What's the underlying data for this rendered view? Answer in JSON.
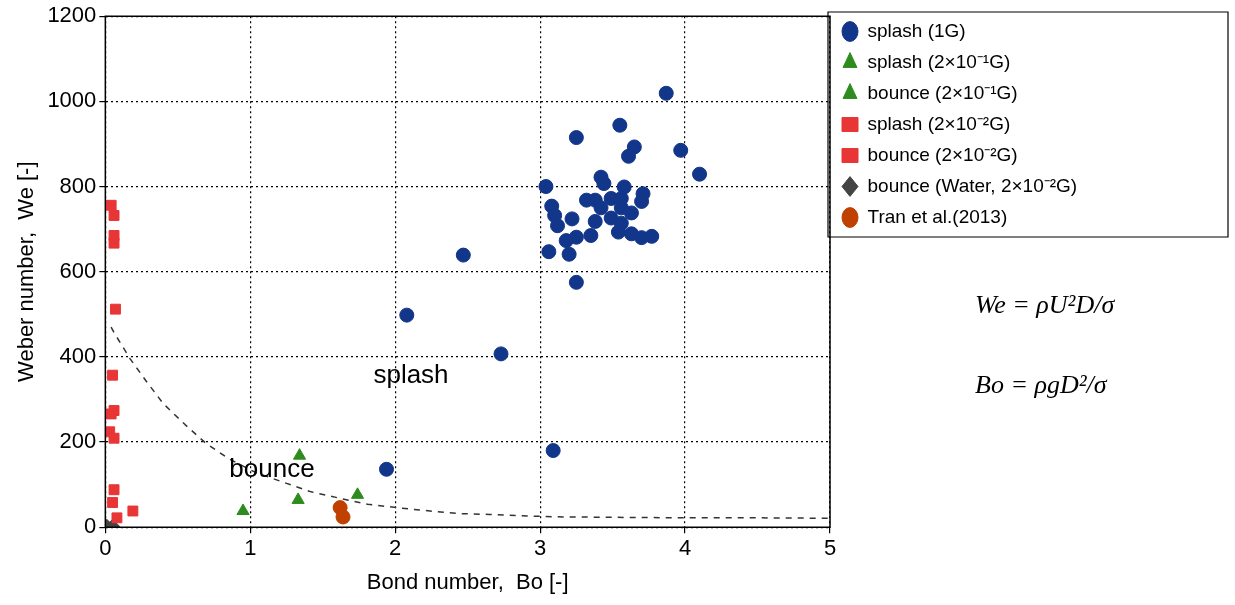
{
  "chart_data": {
    "type": "scatter",
    "xlabel": "Bond number,  Bo [-]",
    "ylabel": "Weber number,  We [-]",
    "xlim": [
      0,
      5
    ],
    "xticks": [
      0,
      1,
      2,
      3,
      4,
      5
    ],
    "ylim": [
      0,
      1200
    ],
    "yticks": [
      0,
      200,
      400,
      600,
      800,
      1000,
      1200
    ],
    "grid": true,
    "legend": "top right",
    "series": [
      {
        "name": "splash (1G)",
        "color": "#12368a",
        "marker": "circle",
        "x": [
          3.87,
          3.55,
          3.25,
          3.65,
          3.61,
          3.97,
          4.1,
          3.42,
          3.44,
          3.04,
          3.58,
          3.71,
          3.7,
          3.32,
          3.38,
          3.49,
          3.56,
          3.42,
          3.08,
          3.1,
          3.63,
          3.56,
          3.22,
          3.49,
          3.56,
          3.38,
          3.12,
          3.54,
          3.63,
          3.7,
          3.77,
          3.35,
          3.25,
          3.18,
          3.06,
          3.2,
          3.25,
          2.47,
          2.08,
          2.73,
          3.09,
          1.94
        ],
        "values": [
          1019,
          944,
          915,
          893,
          871,
          885,
          829,
          822,
          807,
          800,
          799,
          783,
          765,
          768,
          768,
          772,
          772,
          750,
          754,
          732,
          738,
          750,
          724,
          726,
          714,
          718,
          708,
          693,
          689,
          680,
          683,
          685,
          681,
          673,
          647,
          641,
          575,
          639,
          498,
          407,
          180,
          136
        ]
      },
      {
        "name": "splash (2×10⁻¹G)",
        "color": "#2e8b1e",
        "marker": "triangle",
        "x": [
          1.34,
          1.74
        ],
        "values": [
          168,
          76
        ]
      },
      {
        "name": "bounce (2×10⁻¹G)",
        "color": "#2e8b1e",
        "marker": "triangle",
        "x": [
          0.95,
          1.33
        ],
        "values": [
          38,
          64
        ]
      },
      {
        "name": "splash (2×10⁻²G)",
        "color": "#e83535",
        "marker": "square",
        "x": [
          0.04,
          0.06,
          0.06,
          0.06,
          0.07
        ],
        "values": [
          756,
          732,
          685,
          667,
          512
        ]
      },
      {
        "name": "bounce (2×10⁻²G)",
        "color": "#e83535",
        "marker": "square",
        "x": [
          0.05,
          0.06,
          0.04,
          0.03,
          0.06,
          0.06,
          0.05,
          0.08,
          0.19
        ],
        "values": [
          357,
          274,
          266,
          224,
          209,
          88,
          58,
          22,
          38
        ]
      },
      {
        "name": "bounce (Water, 2×10⁻²G)",
        "color": "#444444",
        "marker": "diamond",
        "x": [
          0.01,
          0.05
        ],
        "values": [
          2,
          2
        ]
      },
      {
        "name": "Tran et al.(2013)",
        "color": "#c04000",
        "marker": "circle",
        "x": [
          1.62,
          1.63,
          1.64
        ],
        "values": [
          46,
          null,
          24
        ]
      },
      {
        "type": "line",
        "color": "#333333",
        "marker": "none",
        "line_style": "dashed",
        "x": [
          0.04,
          0.06,
          0.17,
          0.28,
          0.4,
          0.55,
          0.69,
          0.85,
          1.04,
          1.25,
          1.42,
          1.63,
          1.81,
          2.01,
          2.24,
          2.44,
          2.65,
          2.85,
          3.04,
          3.2,
          3.6,
          4.0,
          4.5,
          5.0
        ],
        "values": [
          470,
          457,
          396,
          344,
          290,
          241,
          198,
          161,
          128,
          103,
          83,
          67,
          54,
          46,
          38,
          32,
          30,
          27,
          25,
          24,
          23,
          22,
          22,
          21
        ]
      }
    ],
    "annotations": [
      "splash",
      "bounce",
      "We = ρU²D/σ",
      "Bo = ρgD²/σ"
    ]
  }
}
